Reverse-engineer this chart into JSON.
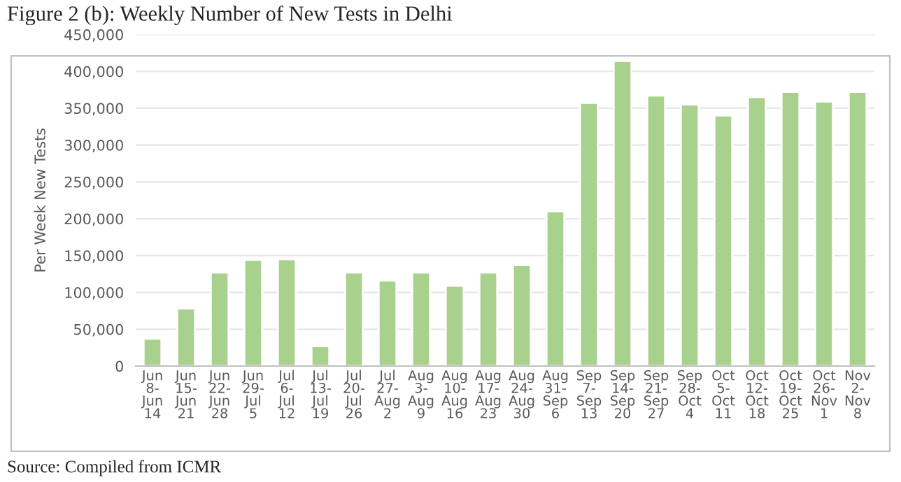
{
  "chart_data": {
    "type": "bar",
    "title": "Figure 2 (b): Weekly Number of New Tests in Delhi",
    "ylabel": "Per Week New Tests",
    "categories": [
      "Jun\n8-\nJun\n14",
      "Jun\n15-\nJun\n21",
      "Jun\n22-\nJun\n28",
      "Jun\n29-\nJul\n5",
      "Jul\n6-\nJul\n12",
      "Jul\n13-\nJul\n19",
      "Jul\n20-\nJul\n26",
      "Jul\n27-\nAug\n2",
      "Aug\n3-\nAug\n9",
      "Aug\n10-\nAug\n16",
      "Aug\n17-\nAug\n23",
      "Aug\n24-\nAug\n30",
      "Aug\n31-\nSep\n6",
      "Sep\n7-\nSep\n13",
      "Sep\n14-\nSep\n20",
      "Sep\n21-\nSep\n27",
      "Sep\n28-\nOct\n4",
      "Oct\n5-\nOct\n11",
      "Oct\n12-\nOct\n18",
      "Oct\n19-\nOct\n25",
      "Oct\n26-\nNov\n1",
      "Nov\n2-\nNov\n8"
    ],
    "values": [
      37000,
      78000,
      127000,
      144000,
      145000,
      27000,
      127000,
      116000,
      127000,
      109000,
      127000,
      137000,
      210000,
      357000,
      414000,
      367000,
      355000,
      340000,
      365000,
      372000,
      359000,
      372000
    ],
    "color": "#a9d18e",
    "ylim": [
      0,
      450000
    ],
    "yticks": [
      0,
      {
        "value": 50000,
        "label": "50,000"
      },
      {
        "value": 100000,
        "label": "100,000"
      },
      {
        "value": 150000,
        "label": "150,000"
      },
      {
        "value": 200000,
        "label": "200,000"
      },
      {
        "value": 250000,
        "label": "250,000"
      },
      {
        "value": 300000,
        "label": "300,000"
      },
      {
        "value": 350000,
        "label": "350,000"
      },
      {
        "value": 400000,
        "label": "400,000"
      },
      {
        "value": 450000,
        "label": "450,000"
      }
    ],
    "grid": "y",
    "annotations": [
      "Source: Compiled from ICMR"
    ]
  }
}
